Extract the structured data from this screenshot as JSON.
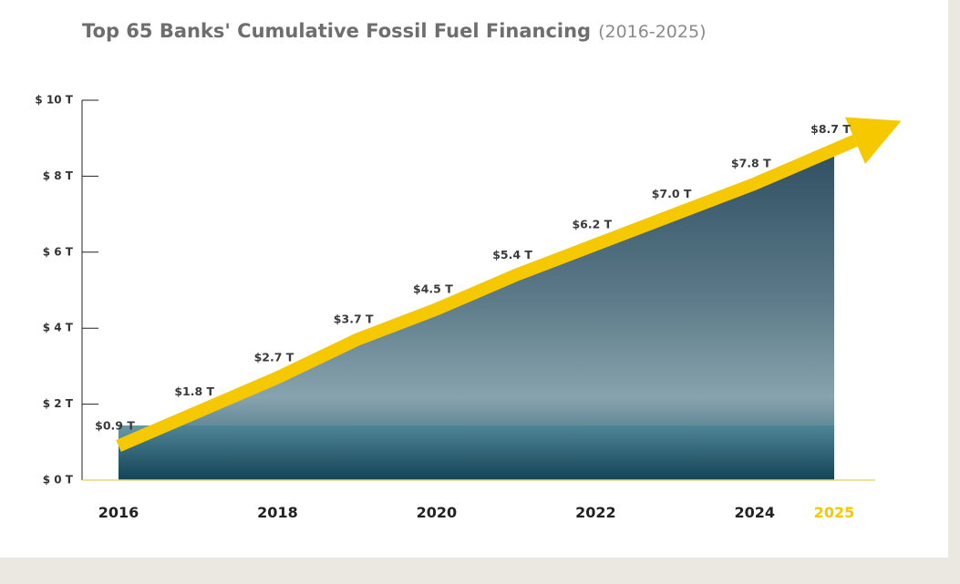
{
  "chart_data": {
    "type": "area",
    "title": "Top 65 Banks' Cumulative Fossil Fuel Financing",
    "subtitle": "(2016-2025)",
    "x": [
      2016,
      2017,
      2018,
      2019,
      2020,
      2021,
      2022,
      2023,
      2024,
      2025
    ],
    "values": [
      0.9,
      1.8,
      2.7,
      3.7,
      4.5,
      5.4,
      6.2,
      7.0,
      7.8,
      8.7
    ],
    "value_labels": [
      "$0.9 T",
      "$1.8 T",
      "$2.7 T",
      "$3.7 T",
      "$4.5 T",
      "$5.4 T",
      "$6.2 T",
      "$7.0 T",
      "$7.8 T",
      "$8.7 T"
    ],
    "color": "#f5c800",
    "xlim": [
      2016,
      2025
    ],
    "xticks": [
      2016,
      2018,
      2020,
      2022,
      2024,
      2025
    ],
    "ylim": [
      0,
      10
    ],
    "yticks": [
      {
        "value": 0,
        "label": "$ 0 T"
      },
      {
        "value": 2,
        "label": "$ 2 T"
      },
      {
        "value": 4,
        "label": "$ 4 T"
      },
      {
        "value": 6,
        "label": "$ 6 T"
      },
      {
        "value": 8,
        "label": "$ 8 T"
      },
      {
        "value": 10,
        "label": "$ 10 T"
      }
    ]
  }
}
